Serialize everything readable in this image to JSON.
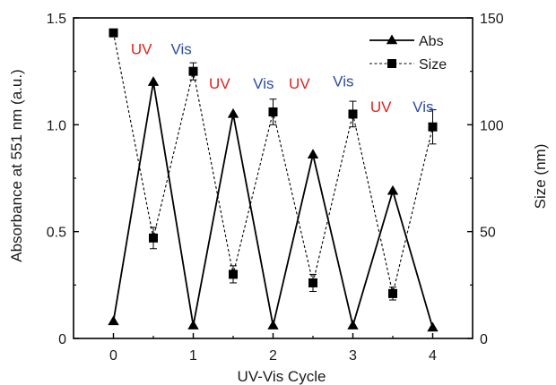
{
  "chart_data": {
    "type": "line",
    "xlabel": "UV-Vis Cycle",
    "ylabel": "Absorbance at 551 nm (a.u.)",
    "y2label": "Size (nm)",
    "xlim": [
      -0.5,
      4.5
    ],
    "ylim": [
      0,
      1.5
    ],
    "y2lim": [
      0,
      150
    ],
    "x_ticks": [
      "0",
      "1",
      "2",
      "3",
      "4"
    ],
    "y_ticks": [
      "0",
      "0.5",
      "1.0",
      "1.5"
    ],
    "y2_ticks": [
      "0",
      "50",
      "100",
      "150"
    ],
    "grid": false,
    "legend_position": "top-right",
    "series": [
      {
        "name": "Abs",
        "axis": "left",
        "marker": "triangle",
        "line": "solid",
        "x": [
          0,
          0.5,
          1,
          1.5,
          2,
          2.5,
          3,
          3.5,
          4
        ],
        "y": [
          0.08,
          1.2,
          0.06,
          1.05,
          0.06,
          0.86,
          0.06,
          0.69,
          0.05
        ]
      },
      {
        "name": "Size",
        "axis": "right",
        "marker": "square",
        "line": "dashed",
        "x": [
          0,
          0.5,
          1,
          1.5,
          2,
          2.5,
          3,
          3.5,
          4
        ],
        "y": [
          143,
          47,
          125,
          30,
          106,
          26,
          105,
          21,
          99
        ],
        "err": [
          0,
          5,
          4,
          4,
          6,
          4,
          6,
          3,
          8
        ]
      }
    ],
    "annotations": [
      {
        "text": "UV",
        "x": 0.35,
        "y": 1.33,
        "color": "#e0211b"
      },
      {
        "text": "Vis",
        "x": 0.85,
        "y": 1.33,
        "color": "#2b4aa5"
      },
      {
        "text": "UV",
        "x": 1.33,
        "y": 1.17,
        "color": "#e0211b"
      },
      {
        "text": "Vis",
        "x": 1.88,
        "y": 1.17,
        "color": "#2b4aa5"
      },
      {
        "text": "UV",
        "x": 2.33,
        "y": 1.17,
        "color": "#e0211b"
      },
      {
        "text": "Vis",
        "x": 2.88,
        "y": 1.18,
        "color": "#2b4aa5"
      },
      {
        "text": "UV",
        "x": 3.35,
        "y": 1.06,
        "color": "#e0211b"
      },
      {
        "text": "Vis",
        "x": 3.88,
        "y": 1.06,
        "color": "#2b4aa5"
      }
    ]
  }
}
